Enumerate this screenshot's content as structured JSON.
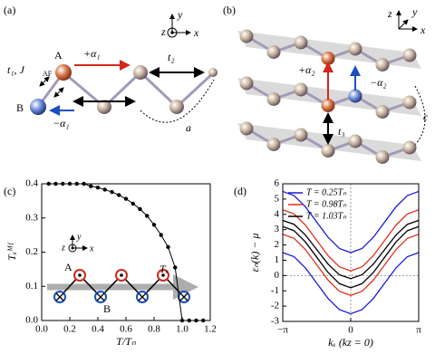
{
  "panels": {
    "a": {
      "label": "(a)",
      "axis_z": "z",
      "axis_y": "y",
      "axis_x": "x",
      "site_a": "A",
      "site_b": "B",
      "alpha_plus": "+α₁",
      "alpha_minus": "−α₁",
      "t2": "t₂",
      "t1_j": "t₁, J",
      "t1_j_sub": "AF",
      "lattice": "a"
    },
    "b": {
      "label": "(b)",
      "axis_z": "z",
      "axis_y": "y",
      "axis_x": "x",
      "alpha_plus": "+α₂",
      "alpha_minus": "−α₂",
      "t3": "t₃",
      "spacing": "c"
    },
    "c": {
      "label": "(c)",
      "axis_z": "z",
      "axis_y": "y",
      "axis_x": "x",
      "site_a": "A",
      "site_b": "B",
      "order": "Tₓ"
    },
    "d": {
      "label": "(d)"
    }
  },
  "chart_data": [
    {
      "type": "line",
      "x_label": "T/Tₙ",
      "y_label": "Tₓᴹᶠ",
      "color": "#000000",
      "markers": true,
      "x": [
        0.05,
        0.1,
        0.15,
        0.2,
        0.25,
        0.3,
        0.35,
        0.4,
        0.45,
        0.5,
        0.55,
        0.6,
        0.65,
        0.7,
        0.75,
        0.8,
        0.85,
        0.9,
        0.95,
        1.0,
        1.05,
        1.1,
        1.15
      ],
      "values": [
        0.4,
        0.4,
        0.4,
        0.4,
        0.4,
        0.4,
        0.393,
        0.389,
        0.383,
        0.376,
        0.367,
        0.356,
        0.342,
        0.326,
        0.306,
        0.28,
        0.25,
        0.215,
        0.155,
        0,
        0,
        0,
        0
      ],
      "xlim": [
        0,
        1.2
      ],
      "ylim": [
        0,
        0.4
      ],
      "xticks": [
        {
          "value": 0,
          "label": "0.0"
        },
        0.2,
        0.4,
        0.6,
        0.8,
        {
          "value": 1,
          "label": "1.0"
        },
        1.2
      ],
      "yticks": [
        {
          "value": 0,
          "label": "0.0"
        },
        0.1,
        0.2,
        0.3,
        0.4
      ]
    },
    {
      "type": "line",
      "x_label": "kₓ (kz = 0)",
      "y_label": "εₙ(k) − μ",
      "legend": "top-left",
      "x": [
        -3.14159,
        -2.61799,
        -2.0944,
        -1.5708,
        -1.0472,
        -0.5236,
        0,
        0.5236,
        1.0472,
        1.5708,
        2.0944,
        2.61799,
        3.14159
      ],
      "series": [
        {
          "name": "T = 0.25Tₙ",
          "color": "#1a1ad6",
          "bands": [
            [
              5.5,
              5.23,
              4.5,
              3.5,
              2.5,
              1.77,
              1.5,
              1.77,
              2.5,
              3.5,
              4.5,
              5.23,
              5.5
            ],
            [
              1.5,
              1.23,
              0.5,
              -0.5,
              -1.5,
              -2.23,
              -2.5,
              -2.23,
              -1.5,
              -0.5,
              0.5,
              1.23,
              1.5
            ]
          ]
        },
        {
          "name": "T = 0.98Tₙ",
          "color": "#e0301e",
          "bands": [
            [
              4.3,
              4.03,
              3.3,
              2.3,
              1.3,
              0.57,
              0.3,
              0.57,
              1.3,
              2.3,
              3.3,
              4.03,
              4.3
            ],
            [
              2.7,
              2.43,
              1.7,
              0.7,
              -0.3,
              -1.03,
              -1.3,
              -1.03,
              -0.3,
              0.7,
              1.7,
              2.43,
              2.7
            ]
          ]
        },
        {
          "name": "T = 1.03Tₙ",
          "color": "#000000",
          "bands": [
            [
              3.6,
              3.35,
              2.65,
              1.7,
              0.75,
              0.05,
              -0.2,
              0.05,
              0.75,
              1.7,
              2.65,
              3.35,
              3.6
            ],
            [
              3.2,
              2.93,
              2.2,
              1.2,
              0.2,
              -0.53,
              -0.8,
              -0.53,
              0.2,
              1.2,
              2.2,
              2.93,
              3.2
            ]
          ]
        }
      ],
      "xlim": [
        -3.14159,
        3.14159
      ],
      "ylim": [
        -3,
        6
      ],
      "xticks": [
        {
          "value": -3.14159,
          "label": "−π"
        },
        0,
        {
          "value": 3.14159,
          "label": "π"
        }
      ],
      "yticks": [
        -3,
        -2,
        -1,
        0,
        1,
        2,
        3,
        4,
        5,
        6
      ]
    }
  ]
}
